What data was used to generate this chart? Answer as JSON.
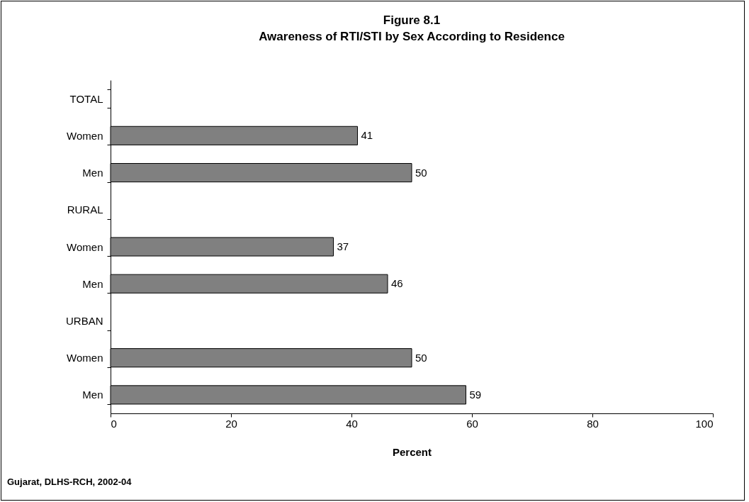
{
  "chart_data": {
    "type": "bar",
    "orientation": "horizontal",
    "title": "Figure 8.1",
    "subtitle": "Awareness of RTI/STI by Sex According to Residence",
    "categories": [
      "TOTAL",
      "Women",
      "Men",
      "RURAL",
      "Women",
      "Men",
      "URBAN",
      "Women",
      "Men"
    ],
    "values": [
      null,
      41,
      50,
      null,
      37,
      46,
      null,
      50,
      59
    ],
    "color": "#808080",
    "data_labels": true,
    "xlabel": "Percent",
    "xlim": [
      0,
      100
    ],
    "xticks": [
      0,
      20,
      40,
      60,
      80,
      100
    ],
    "grid": false,
    "annotations": [
      "Gujarat, DLHS-RCH, 2002-04"
    ]
  }
}
